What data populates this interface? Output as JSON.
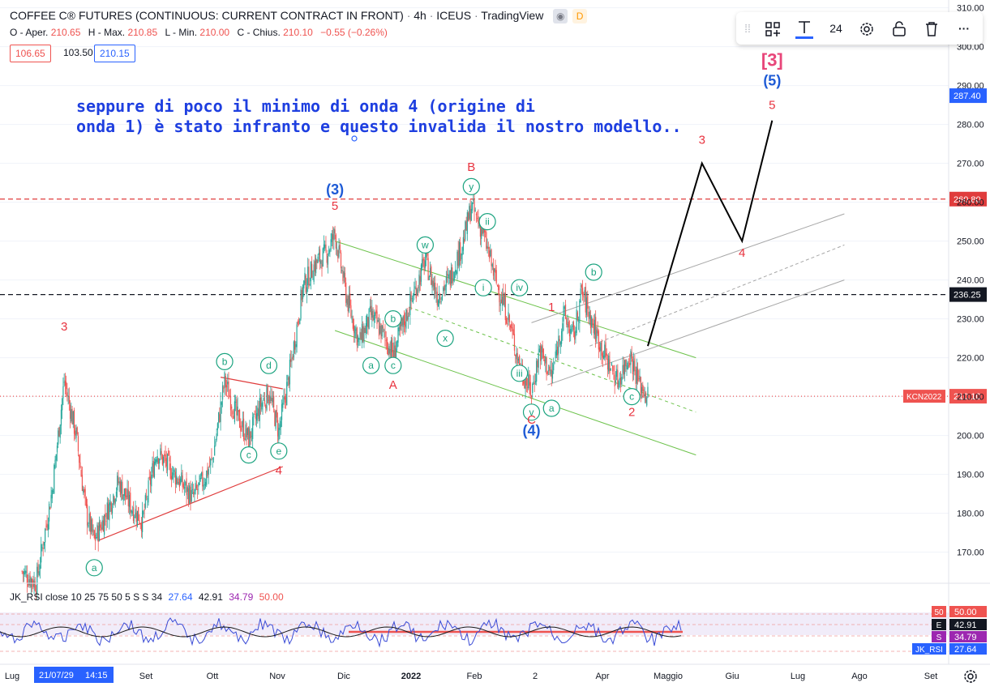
{
  "header": {
    "symbol": "COFFEE C® FUTURES (CONTINUOUS: CURRENT CONTRACT IN FRONT)",
    "interval": "4h",
    "exchange": "ICEUS",
    "source": "TradingView",
    "badge_d": "D"
  },
  "ohlc": {
    "open_label": "O - Aper.",
    "open": "210.65",
    "high_label": "H - Max.",
    "high": "210.85",
    "low_label": "L - Min.",
    "low": "210.00",
    "close_label": "C - Chius.",
    "close": "210.10",
    "change": "−0.55 (−0.26%)"
  },
  "price_boxes": {
    "bid": "106.65",
    "spread": "103.50",
    "ask": "210.15"
  },
  "toolbar": {
    "font_size": "24",
    "more": "···"
  },
  "annotation_text": [
    "seppure di poco il minimo di onda 4 (origine di",
    "onda 1) è stato infranto e questo invalida il nostro  modello.."
  ],
  "colors": {
    "up": "#26a69a",
    "down": "#ef5350",
    "wave_red": "#e8333f",
    "wave_blue": "#1e5bd6",
    "circle": "#1aa37f",
    "channel": "#6cc24a",
    "fork": "#a7a7a7",
    "rsi": "#3a4bd6",
    "rsi_ma": "#1a1a1a",
    "level_red": "#e03c3c"
  },
  "chart_data": {
    "type": "candlestick",
    "symbol": "KCN2022",
    "interval": "4h",
    "x_ticks": [
      "Lug",
      "Set",
      "Ott",
      "Nov",
      "Dic",
      "2022",
      "Feb",
      "2",
      "Apr",
      "Maggio",
      "Giu",
      "Lug",
      "Ago",
      "Set"
    ],
    "crosshair_x_label": "21/07/29",
    "crosshair_time_label": "14:15",
    "y_ticks": [
      170,
      180,
      190,
      200,
      210,
      220,
      230,
      240,
      250,
      260,
      270,
      280,
      290,
      300,
      310
    ],
    "ylim": [
      162,
      312
    ],
    "price_path": [
      [
        "2021-07-01",
        165
      ],
      [
        "2021-07-08",
        162
      ],
      [
        "2021-07-16",
        186
      ],
      [
        "2021-07-22",
        214
      ],
      [
        "2021-07-28",
        200
      ],
      [
        "2021-08-02",
        180
      ],
      [
        "2021-08-06",
        173
      ],
      [
        "2021-08-12",
        180
      ],
      [
        "2021-08-18",
        188
      ],
      [
        "2021-08-24",
        182
      ],
      [
        "2021-08-30",
        178
      ],
      [
        "2021-09-06",
        196
      ],
      [
        "2021-09-12",
        192
      ],
      [
        "2021-09-18",
        188
      ],
      [
        "2021-09-24",
        184
      ],
      [
        "2021-09-30",
        189
      ],
      [
        "2021-10-04",
        194
      ],
      [
        "2021-10-10",
        214
      ],
      [
        "2021-10-16",
        205
      ],
      [
        "2021-10-22",
        199
      ],
      [
        "2021-10-28",
        208
      ],
      [
        "2021-11-01",
        211
      ],
      [
        "2021-11-06",
        201
      ],
      [
        "2021-11-12",
        218
      ],
      [
        "2021-11-18",
        238
      ],
      [
        "2021-11-24",
        244
      ],
      [
        "2021-11-30",
        247
      ],
      [
        "2021-12-04",
        252
      ],
      [
        "2021-12-10",
        235
      ],
      [
        "2021-12-16",
        224
      ],
      [
        "2021-12-22",
        231
      ],
      [
        "2021-12-28",
        226
      ],
      [
        "2022-01-02",
        221
      ],
      [
        "2022-01-10",
        233
      ],
      [
        "2022-01-18",
        245
      ],
      [
        "2022-01-24",
        236
      ],
      [
        "2022-01-30",
        240
      ],
      [
        "2022-02-06",
        250
      ],
      [
        "2022-02-10",
        259
      ],
      [
        "2022-02-16",
        252
      ],
      [
        "2022-02-22",
        240
      ],
      [
        "2022-02-28",
        231
      ],
      [
        "2022-03-06",
        218
      ],
      [
        "2022-03-12",
        211
      ],
      [
        "2022-03-16",
        222
      ],
      [
        "2022-03-22",
        215
      ],
      [
        "2022-03-28",
        231
      ],
      [
        "2022-04-02",
        225
      ],
      [
        "2022-04-06",
        237
      ],
      [
        "2022-04-12",
        228
      ],
      [
        "2022-04-18",
        220
      ],
      [
        "2022-04-24",
        214
      ],
      [
        "2022-04-30",
        221
      ],
      [
        "2022-05-05",
        213
      ],
      [
        "2022-05-09",
        210.1
      ]
    ],
    "projection_path": [
      [
        "2022-05-09",
        223
      ],
      [
        "2022-06-05",
        270
      ],
      [
        "2022-06-25",
        250
      ],
      [
        "2022-07-10",
        281
      ]
    ],
    "levels": [
      {
        "price": 260.8,
        "label": "260.80",
        "style": "dashed",
        "color": "#e03c3c"
      },
      {
        "price": 236.25,
        "label": "236.25",
        "style": "dashed",
        "color": "#131722"
      },
      {
        "price": 210.1,
        "label": "210.10",
        "style": "dotted",
        "color": "#ef5350",
        "tag": "KCN2022"
      }
    ],
    "axis_tags": [
      {
        "price": 287.4,
        "label": "287.40",
        "color": "#2962ff"
      }
    ],
    "wave_labels": [
      {
        "text": "3",
        "date": "2021-07-22",
        "price": 227,
        "color": "red"
      },
      {
        "text": "a",
        "date": "2021-08-06",
        "price": 166,
        "circle": true
      },
      {
        "text": "b",
        "date": "2021-10-10",
        "price": 219,
        "circle": true
      },
      {
        "text": "c",
        "date": "2021-10-22",
        "price": 195,
        "circle": true
      },
      {
        "text": "d",
        "date": "2021-11-01",
        "price": 218,
        "circle": true
      },
      {
        "text": "e",
        "date": "2021-11-06",
        "price": 196,
        "circle": true
      },
      {
        "text": "4",
        "date": "2021-11-06",
        "price": 190,
        "color": "red"
      },
      {
        "text": "(3)",
        "date": "2021-12-04",
        "price": 262,
        "color": "blue"
      },
      {
        "text": "5",
        "date": "2021-12-04",
        "price": 258,
        "color": "red"
      },
      {
        "text": "a",
        "date": "2021-12-22",
        "price": 218,
        "circle": true
      },
      {
        "text": "b",
        "date": "2022-01-02",
        "price": 230,
        "circle": true
      },
      {
        "text": "c",
        "date": "2022-01-02",
        "price": 218,
        "circle": true
      },
      {
        "text": "A",
        "date": "2022-01-02",
        "price": 212,
        "color": "red"
      },
      {
        "text": "w",
        "date": "2022-01-18",
        "price": 249,
        "circle": true
      },
      {
        "text": "x",
        "date": "2022-01-28",
        "price": 225,
        "circle": true
      },
      {
        "text": "B",
        "date": "2022-02-10",
        "price": 268,
        "color": "red"
      },
      {
        "text": "y",
        "date": "2022-02-10",
        "price": 264,
        "circle": true
      },
      {
        "text": "ii",
        "date": "2022-02-18",
        "price": 255,
        "circle": true
      },
      {
        "text": "i",
        "date": "2022-02-16",
        "price": 238,
        "circle": true
      },
      {
        "text": "iv",
        "date": "2022-03-06",
        "price": 238,
        "circle": true
      },
      {
        "text": "iii",
        "date": "2022-03-06",
        "price": 216,
        "circle": true
      },
      {
        "text": "v",
        "date": "2022-03-12",
        "price": 206,
        "circle": true
      },
      {
        "text": "C",
        "date": "2022-03-12",
        "price": 203,
        "color": "red"
      },
      {
        "text": "(4)",
        "date": "2022-03-12",
        "price": 200,
        "color": "blue"
      },
      {
        "text": "a",
        "date": "2022-03-22",
        "price": 207,
        "circle": true
      },
      {
        "text": "1",
        "date": "2022-03-22",
        "price": 232,
        "color": "red"
      },
      {
        "text": "b",
        "date": "2022-04-12",
        "price": 242,
        "circle": true
      },
      {
        "text": "c",
        "date": "2022-05-01",
        "price": 210,
        "circle": true
      },
      {
        "text": "2",
        "date": "2022-05-01",
        "price": 205,
        "color": "red"
      },
      {
        "text": "3",
        "date": "2022-06-05",
        "price": 275,
        "color": "red"
      },
      {
        "text": "4",
        "date": "2022-06-25",
        "price": 246,
        "color": "red"
      },
      {
        "text": "5",
        "date": "2022-07-10",
        "price": 284,
        "color": "red"
      },
      {
        "text": "(5)",
        "date": "2022-07-10",
        "price": 290,
        "color": "blue"
      },
      {
        "text": "[3]",
        "date": "2022-07-10",
        "price": 295,
        "color": "magenta"
      }
    ]
  },
  "rsi": {
    "title": "JK_RSI close 10 25 75 50 5 S S 34",
    "values": [
      "27.64",
      "42.91",
      "34.79",
      "50.00"
    ],
    "tags": [
      {
        "label": "50.00",
        "letter": "50",
        "color": "#ef5350"
      },
      {
        "label": "42.91",
        "letter": "E",
        "color": "#131722"
      },
      {
        "label": "34.79",
        "letter": "S",
        "color": "#9c27b0"
      },
      {
        "label": "27.64",
        "letter": "JK_RSI",
        "color": "#2962ff"
      }
    ]
  }
}
